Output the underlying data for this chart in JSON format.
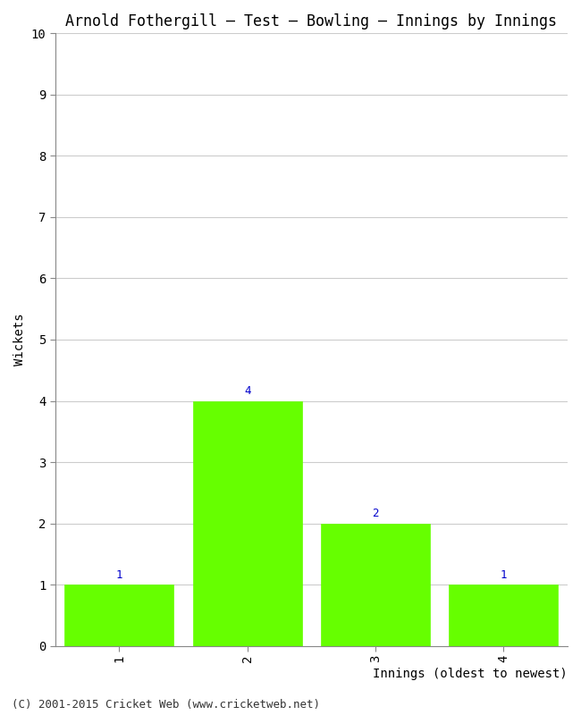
{
  "title": "Arnold Fothergill – Test – Bowling – Innings by Innings",
  "xlabel": "Innings (oldest to newest)",
  "ylabel": "Wickets",
  "categories": [
    1,
    2,
    3,
    4
  ],
  "values": [
    1,
    4,
    2,
    1
  ],
  "bar_color": "#66ff00",
  "bar_edge_color": "#66ff00",
  "ylim": [
    0,
    10
  ],
  "yticks": [
    0,
    1,
    2,
    3,
    4,
    5,
    6,
    7,
    8,
    9,
    10
  ],
  "xticks": [
    1,
    2,
    3,
    4
  ],
  "annotation_color": "#0000cc",
  "annotation_fontsize": 9,
  "title_fontsize": 12,
  "axis_label_fontsize": 10,
  "tick_label_fontsize": 10,
  "footer_text": "(C) 2001-2015 Cricket Web (www.cricketweb.net)",
  "footer_fontsize": 9,
  "background_color": "#ffffff",
  "grid_color": "#cccccc",
  "bar_width": 0.85
}
